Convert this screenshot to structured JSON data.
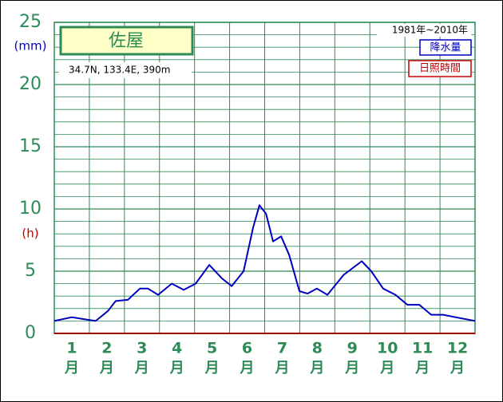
{
  "chart_data": {
    "type": "line",
    "title": "佐屋",
    "subtitle": "34.7N,  133.4E,  390m",
    "period": "1981年~2010年",
    "y_unit_label": "(mm)",
    "y2_unit_label": "(h)",
    "legend": [
      "降水量",
      "日照時間"
    ],
    "categories": [
      "1",
      "2",
      "3",
      "4",
      "5",
      "6",
      "7",
      "8",
      "9",
      "10",
      "11",
      "12"
    ],
    "month_label": "月",
    "x": [
      1.0,
      1.5,
      1.84,
      2.18,
      2.53,
      2.75,
      3.1,
      3.44,
      3.67,
      3.96,
      4.35,
      4.69,
      5.03,
      5.42,
      5.79,
      6.06,
      6.4,
      6.67,
      6.85,
      7.04,
      7.24,
      7.47,
      7.7,
      7.99,
      8.22,
      8.49,
      8.79,
      9.25,
      9.77,
      10.04,
      10.38,
      10.73,
      11.07,
      11.41,
      11.75,
      12.09,
      12.44,
      13.0
    ],
    "series": [
      {
        "name": "降水量",
        "color": "#0000c0",
        "values": [
          1.0,
          1.3,
          1.15,
          1.0,
          1.8,
          2.6,
          2.7,
          3.6,
          3.6,
          3.1,
          4.0,
          3.5,
          4.0,
          5.5,
          4.4,
          3.8,
          5.0,
          8.5,
          10.3,
          9.6,
          7.4,
          7.8,
          6.3,
          3.4,
          3.2,
          3.6,
          3.1,
          4.7,
          5.8,
          5.0,
          3.6,
          3.1,
          2.3,
          2.3,
          1.5,
          1.5,
          1.3,
          1.0
        ]
      }
    ],
    "xlim": [
      1,
      13
    ],
    "xticks": [
      1,
      2,
      3,
      4,
      5,
      6,
      7,
      8,
      9,
      10,
      11,
      12,
      13
    ],
    "ylim": [
      0,
      25
    ],
    "yticks": [
      0,
      5,
      10,
      15,
      20,
      25
    ],
    "minor_yticks": [
      1,
      2,
      3,
      4,
      6,
      7,
      8,
      9,
      11,
      12,
      13,
      14,
      16,
      17,
      18,
      19,
      21,
      22,
      23,
      24
    ],
    "grid": true,
    "grid_color": "#2e8b57",
    "legend_colors": [
      "#0000c0",
      "#c00000"
    ]
  }
}
